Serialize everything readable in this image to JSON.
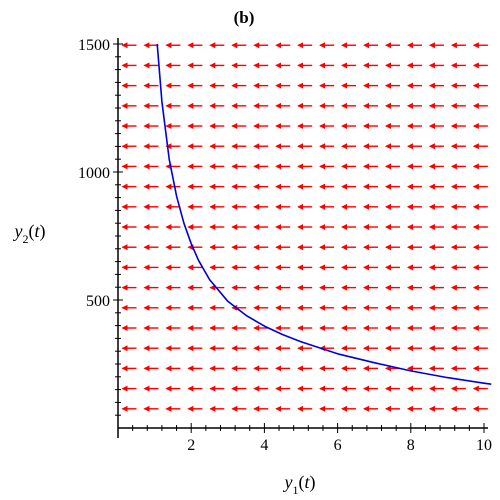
{
  "chart_data": {
    "type": "line",
    "title": "(b)",
    "xlabel": {
      "var": "y",
      "sub": "1",
      "arg": "t"
    },
    "ylabel": {
      "var": "y",
      "sub": "2",
      "arg": "t"
    },
    "xlim": [
      0,
      10.2
    ],
    "ylim": [
      0,
      1500
    ],
    "xticks": [
      2,
      4,
      6,
      8,
      10
    ],
    "yticks": [
      500,
      1000,
      1500
    ],
    "grid": false,
    "colors": {
      "curve": "#0000dd",
      "field": "#ff0000"
    },
    "direction_field": {
      "direction": "left",
      "x_start": 0.15,
      "x_step": 0.6,
      "x_count": 17,
      "y_start": 75,
      "y_step": 78.9,
      "y_count": 19
    },
    "series": [
      {
        "x": [
          1.07,
          1.2,
          1.4,
          1.6,
          1.8,
          2.0,
          2.2,
          2.5,
          3.0,
          3.5,
          4.0,
          4.5,
          5.0,
          6.0,
          7.0,
          8.0,
          9.0,
          10.0,
          10.2
        ],
        "y": [
          1500,
          1275,
          1050,
          905,
          800,
          720,
          655,
          580,
          495,
          440,
          398,
          365,
          337,
          290,
          255,
          223,
          197,
          175,
          171
        ]
      }
    ]
  }
}
